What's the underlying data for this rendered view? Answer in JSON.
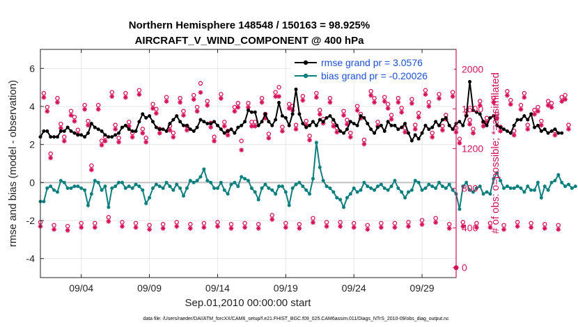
{
  "chart_data": {
    "type": "line",
    "title": "Northern Hemisphere 148548 / 150163 = 98.925%",
    "subtitle": "AIRCRAFT_V_WIND_COMPONENT @ 400 hPa",
    "xlabel": "Sep.01,2010 00:00:00 start",
    "ylabel_left": "rmse and bias (model - observation)",
    "ylabel_right": "# of obs: o=possible; *=assimilated",
    "footer": "data file: /Users/raeder/DAI/ATM_forcXX/CAM6_setup/f.e21.FHIST_BGC.f09_025.CAM6assim.011/Diags_NTrS_2010-09/obs_diag_output.nc",
    "xlim": [
      1.0,
      31.5
    ],
    "ylim_left": [
      -5,
      7
    ],
    "ylim_right": [
      -100,
      2200
    ],
    "x_ticks": [
      4,
      9,
      14,
      19,
      24,
      29
    ],
    "x_tick_labels": [
      "09/04",
      "09/09",
      "09/14",
      "09/19",
      "09/24",
      "09/29"
    ],
    "y_left_ticks": [
      -4,
      -2,
      0,
      2,
      4,
      6
    ],
    "y_left_tick_labels": [
      "-4",
      "-2",
      "0",
      "2",
      "4",
      "6"
    ],
    "y_right_ticks": [
      0,
      400,
      800,
      1200,
      1600,
      2000
    ],
    "y_right_tick_labels": [
      "0",
      "400",
      "800",
      "1200",
      "1600",
      "2000"
    ],
    "legend_position": "top-right",
    "colors": {
      "rmse": "#000000",
      "bias": "#0e7f7f",
      "obs": "#d41159",
      "zero_line": "#c0c0c0",
      "legend_text": "#1f4fd8"
    },
    "series": [
      {
        "name": "rmse grand pr = 3.0576",
        "axis": "left",
        "x_start": 1.0,
        "x_step": 0.25,
        "values": [
          2.4,
          2.7,
          2.7,
          2.4,
          2.4,
          2.4,
          2.7,
          2.7,
          2.9,
          2.7,
          2.6,
          2.5,
          2.5,
          2.4,
          2.6,
          3.1,
          2.9,
          2.8,
          2.7,
          2.5,
          2.4,
          2.4,
          2.5,
          2.6,
          2.9,
          3.0,
          2.8,
          2.7,
          2.7,
          3.2,
          3.6,
          3.4,
          3.5,
          3.2,
          2.9,
          2.8,
          2.8,
          2.7,
          3.1,
          3.3,
          3.5,
          3.2,
          3.0,
          3.0,
          2.8,
          2.7,
          2.9,
          3.3,
          3.2,
          3.1,
          3.1,
          3.2,
          3.0,
          2.8,
          2.6,
          2.7,
          2.8,
          2.6,
          2.9,
          3.0,
          3.2,
          3.8,
          3.7,
          3.7,
          3.0,
          3.2,
          3.6,
          3.2,
          3.0,
          3.3,
          4.2,
          3.5,
          3.4,
          3.0,
          3.6,
          4.9,
          3.6,
          3.1,
          2.9,
          3.0,
          3.2,
          3.0,
          3.3,
          3.2,
          3.4,
          3.5,
          3.3,
          3.0,
          2.7,
          2.6,
          2.8,
          3.2,
          3.1,
          3.0,
          3.5,
          3.4,
          3.1,
          2.8,
          2.6,
          2.9,
          3.0,
          2.7,
          3.2,
          3.0,
          3.0,
          2.8,
          2.9,
          3.1,
          2.6,
          2.2,
          2.5,
          2.3,
          2.6,
          3.0,
          2.8,
          2.9,
          3.2,
          3.0,
          3.3,
          3.4,
          3.0,
          2.8,
          3.1,
          3.2,
          3.0,
          3.5,
          5.3,
          3.8,
          3.7,
          3.6,
          3.2,
          3.0,
          3.4,
          3.5,
          3.0,
          2.9,
          2.8,
          2.7,
          2.6,
          3.0,
          3.3,
          3.3,
          3.5,
          3.3,
          3.6,
          2.9,
          3.0,
          2.7,
          2.8,
          2.6,
          2.7,
          2.8,
          2.6,
          2.6
        ]
      },
      {
        "name": "bias grand pr = -0.20026",
        "axis": "left",
        "x_start": 1.0,
        "x_step": 0.25,
        "values": [
          -1.0,
          -1.0,
          -0.3,
          -0.2,
          -0.4,
          -0.5,
          0.1,
          0.0,
          -0.3,
          -0.3,
          -0.2,
          -0.2,
          -0.3,
          -0.4,
          -1.2,
          -0.6,
          0.1,
          0.0,
          -0.4,
          -0.2,
          -1.3,
          -0.3,
          -0.2,
          0.0,
          0.0,
          -0.3,
          -0.2,
          -0.3,
          -0.1,
          -0.2,
          -0.4,
          -1.1,
          -0.8,
          -0.3,
          -0.1,
          -0.2,
          -0.3,
          0.0,
          -0.2,
          -0.4,
          -0.1,
          -0.3,
          -0.7,
          -0.3,
          0.1,
          0.0,
          0.1,
          0.3,
          0.7,
          0.1,
          0.0,
          -0.3,
          -0.3,
          0.0,
          -0.4,
          -0.6,
          -0.1,
          0.0,
          -0.2,
          0.3,
          0.2,
          0.1,
          -0.3,
          -0.5,
          -0.9,
          -0.3,
          -0.1,
          -0.3,
          -0.4,
          -0.6,
          -0.2,
          -0.2,
          -0.5,
          -1.2,
          -0.3,
          -0.1,
          0.0,
          -0.2,
          -0.4,
          -0.6,
          0.2,
          2.1,
          0.8,
          0.1,
          -0.2,
          -0.3,
          -0.5,
          -0.8,
          -0.9,
          -1.3,
          -0.8,
          -0.6,
          -0.3,
          -0.5,
          -0.4,
          0.0,
          -0.2,
          -0.3,
          -0.4,
          -0.2,
          -0.1,
          -0.3,
          -0.4,
          -0.2,
          0.1,
          -0.3,
          -0.5,
          -0.8,
          -0.5,
          -0.4,
          0.1,
          0.0,
          -0.4,
          -0.3,
          -0.1,
          -0.2,
          -0.3,
          0.0,
          -0.2,
          -0.3,
          -0.1,
          -0.4,
          -0.6,
          -1.4,
          -0.2,
          0.0,
          -0.4,
          -0.5,
          -0.3,
          -0.2,
          -0.6,
          -0.5,
          -0.6,
          0.2,
          0.5,
          0.1,
          -0.3,
          -0.2,
          -0.3,
          -0.3,
          -0.2,
          -0.3,
          -0.5,
          -0.2,
          -0.4,
          -0.4,
          0.0,
          -0.8,
          -0.2,
          -0.4,
          0.0,
          0.1,
          0.4,
          0.0,
          -0.2,
          -0.1,
          -0.3,
          -0.2
        ]
      },
      {
        "name": "obs possible",
        "axis": "right",
        "marker": "circle",
        "x_start": 1.0,
        "x_step": 0.25,
        "values": [
          430,
          1730,
          1590,
          1120,
          400,
          1680,
          1420,
          1290,
          390,
          1550,
          1490,
          1360,
          420,
          1610,
          1450,
          1000,
          420,
          1610,
          1250,
          1290,
          480,
          1740,
          1410,
          1280,
          430,
          1730,
          1440,
          1330,
          420,
          1760,
          1370,
          1280,
          400,
          1620,
          1570,
          1370,
          410,
          1690,
          1400,
          1330,
          430,
          1680,
          1550,
          1400,
          410,
          1710,
          1590,
          1830,
          420,
          1650,
          1430,
          1290,
          430,
          1720,
          1440,
          1350,
          410,
          1590,
          1630,
          1250,
          420,
          1630,
          1440,
          1440,
          410,
          1680,
          1520,
          1320,
          500,
          1740,
          1790,
          1390,
          420,
          1620,
          1600,
          1410,
          410,
          1700,
          1450,
          1300,
          470,
          1730,
          1560,
          1470,
          430,
          1680,
          1440,
          1380,
          430,
          1550,
          1460,
          1330,
          420,
          1600,
          1520,
          1260,
          400,
          1750,
          1680,
          1440,
          420,
          1690,
          1620,
          1510,
          420,
          1680,
          1580,
          1380,
          430,
          1670,
          1410,
          1530,
          450,
          1760,
          1640,
          1330,
          470,
          1720,
          1400,
          1510,
          410,
          1740,
          1380,
          1270,
          430,
          1550,
          1460,
          1370,
          420,
          1650,
          1440,
          1480,
          420,
          1680,
          1520,
          1390,
          400,
          1750,
          1660,
          1350,
          430,
          1610,
          1730,
          1410,
          420,
          1560,
          1590,
          1450,
          410,
          1650,
          1630,
          1350,
          400,
          1690,
          1710,
          1410
        ]
      },
      {
        "name": "obs assimilated",
        "axis": "right",
        "marker": "asterisk",
        "x_start": 1.0,
        "x_step": 0.25,
        "values": [
          430,
          1730,
          1590,
          1120,
          400,
          1680,
          1420,
          1290,
          390,
          1550,
          1490,
          1360,
          420,
          1610,
          1450,
          1000,
          420,
          1610,
          1250,
          1290,
          480,
          1740,
          1410,
          1280,
          430,
          1730,
          1440,
          1330,
          420,
          1760,
          1370,
          1280,
          400,
          1620,
          1570,
          1370,
          410,
          1690,
          1400,
          1330,
          430,
          1680,
          1550,
          1400,
          410,
          1710,
          1590,
          1780,
          420,
          1650,
          1430,
          1290,
          430,
          1720,
          1440,
          1350,
          410,
          1590,
          1630,
          1200,
          420,
          1630,
          1440,
          1440,
          410,
          1680,
          1520,
          1320,
          500,
          1740,
          1740,
          1390,
          420,
          1620,
          1600,
          1410,
          410,
          1700,
          1450,
          1300,
          470,
          1730,
          1560,
          1470,
          430,
          1680,
          1440,
          1380,
          430,
          1550,
          1460,
          1330,
          420,
          1600,
          1520,
          1260,
          400,
          1750,
          1680,
          1440,
          420,
          1690,
          1620,
          1510,
          420,
          1680,
          1580,
          1380,
          430,
          1670,
          1410,
          1530,
          450,
          1760,
          1640,
          1330,
          470,
          1720,
          1400,
          1510,
          410,
          1740,
          1380,
          1270,
          430,
          1550,
          1460,
          1370,
          420,
          1650,
          1440,
          1480,
          420,
          1680,
          1520,
          1390,
          400,
          1750,
          1660,
          1350,
          430,
          1610,
          1730,
          1410,
          420,
          1560,
          1590,
          1450,
          410,
          1650,
          1630,
          1350,
          400,
          1690,
          1710,
          1410
        ]
      }
    ],
    "extra_points": [
      {
        "x": 31.5,
        "y": 0,
        "axis": "right",
        "marker": "circle"
      }
    ]
  }
}
